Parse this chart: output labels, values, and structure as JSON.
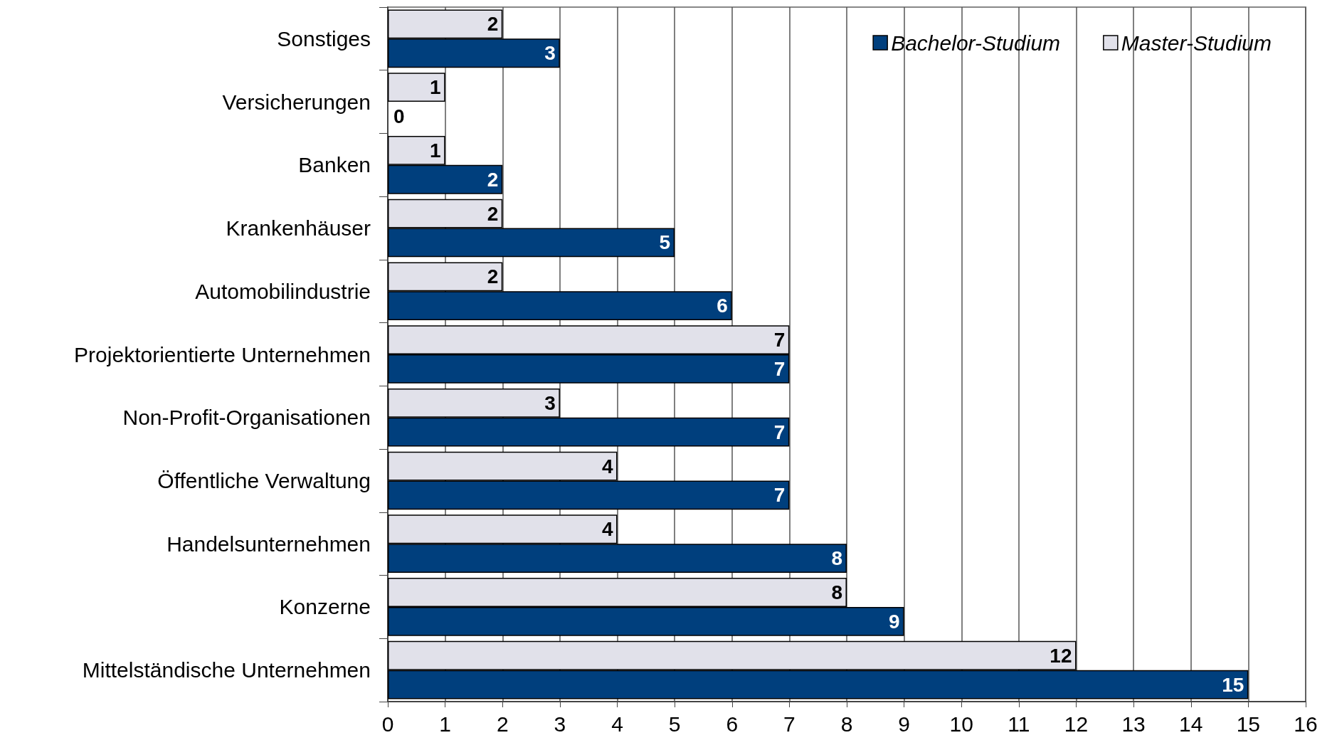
{
  "chart_data": {
    "type": "bar",
    "orientation": "horizontal",
    "categories": [
      "Sonstiges",
      "Versicherungen",
      "Banken",
      "Krankenhäuser",
      "Automobilindustrie",
      "Projektorientierte Unternehmen",
      "Non-Profit-Organisationen",
      "Öffentliche Verwaltung",
      "Handelsunternehmen",
      "Konzerne",
      "Mittelständische Unternehmen"
    ],
    "series": [
      {
        "name": "Master-Studium",
        "color": "#e1e1ea",
        "values": [
          2,
          1,
          1,
          2,
          2,
          7,
          3,
          4,
          4,
          8,
          12
        ]
      },
      {
        "name": "Bachelor-Studium",
        "color": "#003f7d",
        "values": [
          3,
          0,
          2,
          5,
          6,
          7,
          7,
          7,
          8,
          9,
          15
        ]
      }
    ],
    "xlim": [
      0,
      16
    ],
    "xticks": [
      0,
      1,
      2,
      3,
      4,
      5,
      6,
      7,
      8,
      9,
      10,
      11,
      12,
      13,
      14,
      15,
      16
    ],
    "grid": "x",
    "legend": "top right",
    "data_labels": true
  }
}
